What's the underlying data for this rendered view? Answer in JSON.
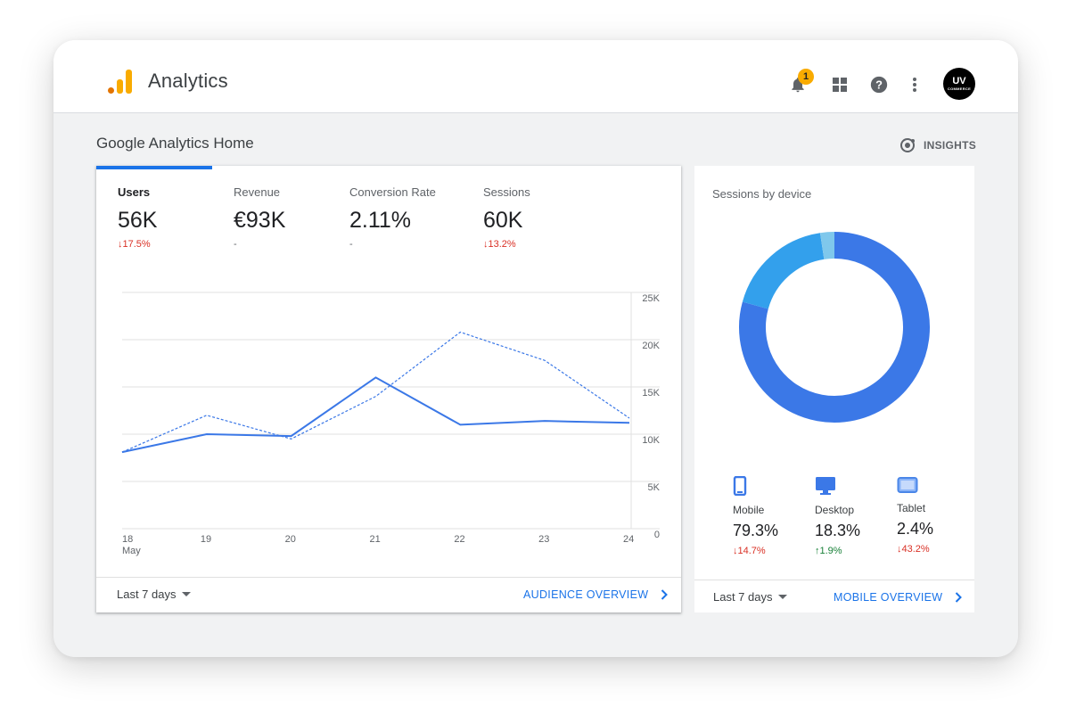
{
  "header": {
    "app_title": "Analytics",
    "notification_count": "1",
    "avatar_text": "UV",
    "avatar_sub": "COMMERCE"
  },
  "page": {
    "title": "Google Analytics Home",
    "insights_label": "INSIGHTS"
  },
  "metrics": [
    {
      "label": "Users",
      "value": "56K",
      "delta": "17.5%",
      "arrow": "↓",
      "dir": "down"
    },
    {
      "label": "Revenue",
      "value": "€93K",
      "delta": "-",
      "arrow": "",
      "dir": "none"
    },
    {
      "label": "Conversion Rate",
      "value": "2.11%",
      "delta": "-",
      "arrow": "",
      "dir": "none"
    },
    {
      "label": "Sessions",
      "value": "60K",
      "delta": "13.2%",
      "arrow": "↓",
      "dir": "down"
    }
  ],
  "main_footer": {
    "range": "Last 7 days",
    "link": "AUDIENCE OVERVIEW"
  },
  "chart_data": {
    "type": "line",
    "x": [
      "18",
      "19",
      "20",
      "21",
      "22",
      "23",
      "24"
    ],
    "x_sub_first": "May",
    "y_ticks": [
      "25K",
      "20K",
      "15K",
      "10K",
      "5K",
      "0"
    ],
    "ylim": [
      0,
      25000
    ],
    "grid": true,
    "series": [
      {
        "style": "solid",
        "values": [
          8100,
          10000,
          9800,
          16000,
          11000,
          11400,
          11200
        ]
      },
      {
        "style": "dashed",
        "values": [
          8100,
          12000,
          9500,
          14000,
          20800,
          17800,
          11700
        ]
      }
    ],
    "colors": {
      "line": "#3b78e7"
    }
  },
  "device": {
    "title": "Sessions by device",
    "footer_range": "Last 7 days",
    "footer_link": "MOBILE OVERVIEW",
    "items": [
      {
        "label": "Mobile",
        "value": "79.3%",
        "share": 79.3,
        "delta": "14.7%",
        "arrow": "↓",
        "dir": "down",
        "color": "#3b78e7",
        "icon": "phone-icon"
      },
      {
        "label": "Desktop",
        "value": "18.3%",
        "share": 18.3,
        "delta": "1.9%",
        "arrow": "↑",
        "dir": "up",
        "color": "#33a0ec",
        "icon": "desktop-icon"
      },
      {
        "label": "Tablet",
        "value": "2.4%",
        "share": 2.4,
        "delta": "43.2%",
        "arrow": "↓",
        "dir": "down",
        "color": "#7fc8ec",
        "icon": "tablet-icon"
      }
    ]
  },
  "colors": {
    "accent": "#1a73e8",
    "down": "#d93025",
    "up": "#188038",
    "logo_orange": "#f9ab00",
    "logo_red": "#e37400"
  }
}
